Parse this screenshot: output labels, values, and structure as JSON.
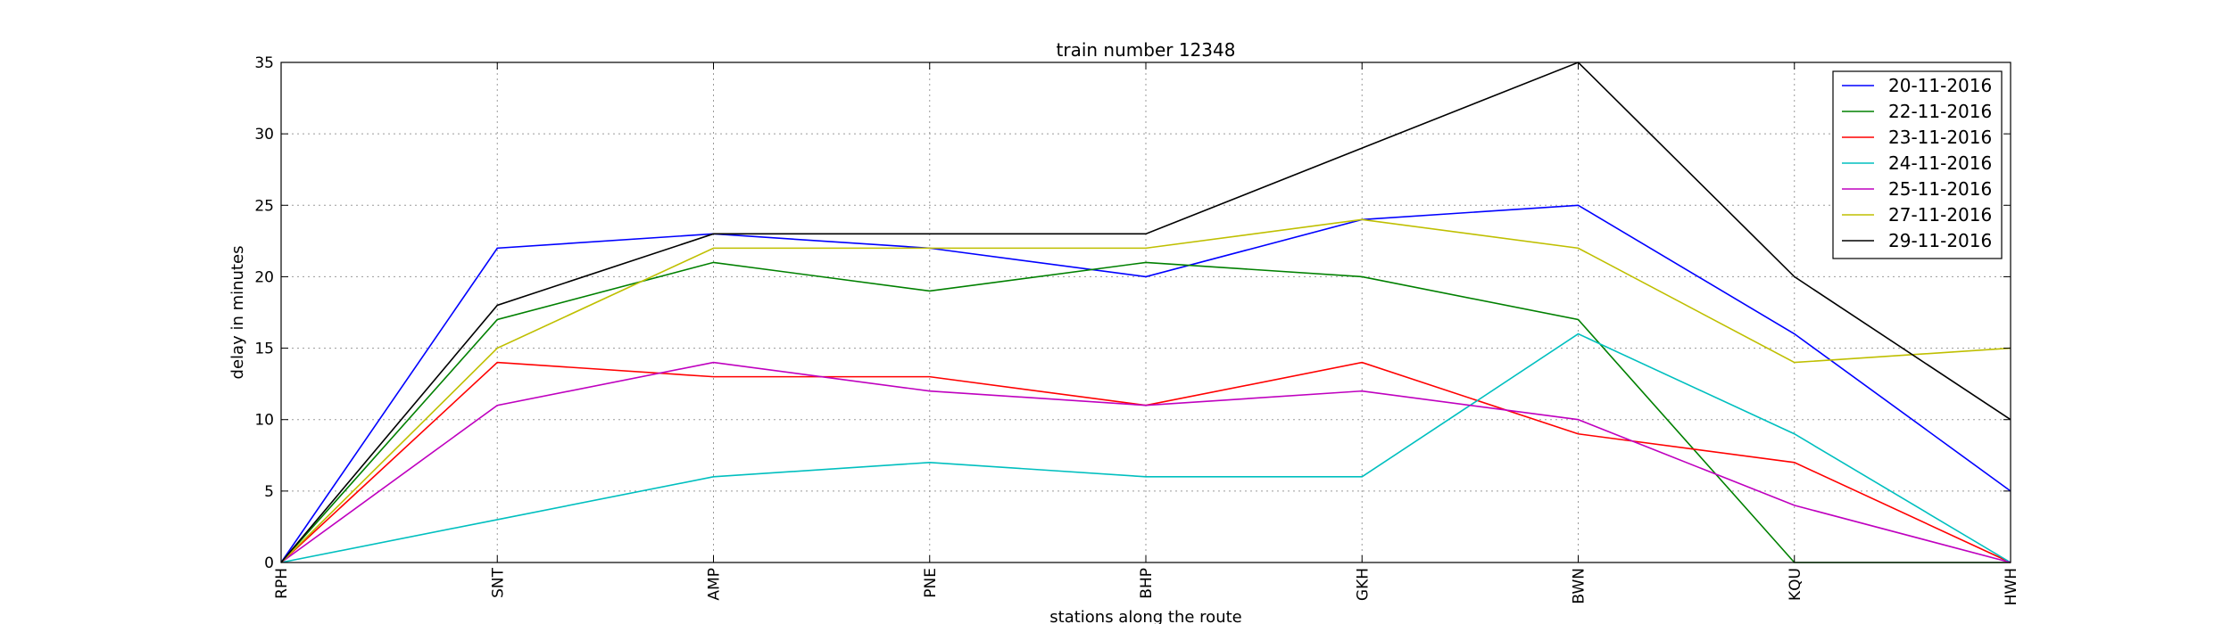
{
  "chart_data": {
    "type": "line",
    "title": "train number 12348",
    "xlabel": "stations along the route",
    "ylabel": "delay in minutes",
    "categories": [
      "RPH",
      "SNT",
      "AMP",
      "PNE",
      "BHP",
      "GKH",
      "BWN",
      "KQU",
      "HWH"
    ],
    "ylim": [
      0,
      35
    ],
    "yticks": [
      0,
      5,
      10,
      15,
      20,
      25,
      30,
      35
    ],
    "grid": true,
    "legend_position": "top-right",
    "series": [
      {
        "name": "20-11-2016",
        "color": "#0000ff",
        "values": [
          0,
          22,
          23,
          22,
          20,
          24,
          25,
          16,
          5
        ]
      },
      {
        "name": "22-11-2016",
        "color": "#008000",
        "values": [
          0,
          17,
          21,
          19,
          21,
          20,
          17,
          0,
          0
        ]
      },
      {
        "name": "23-11-2016",
        "color": "#ff0000",
        "values": [
          0,
          14,
          13,
          13,
          11,
          14,
          9,
          7,
          0
        ]
      },
      {
        "name": "24-11-2016",
        "color": "#00bfbf",
        "values": [
          0,
          3,
          6,
          7,
          6,
          6,
          16,
          9,
          0
        ]
      },
      {
        "name": "25-11-2016",
        "color": "#bf00bf",
        "values": [
          0,
          11,
          14,
          12,
          11,
          12,
          10,
          4,
          0
        ]
      },
      {
        "name": "27-11-2016",
        "color": "#bfbf00",
        "values": [
          0,
          15,
          22,
          22,
          22,
          24,
          22,
          14,
          15
        ]
      },
      {
        "name": "29-11-2016",
        "color": "#000000",
        "values": [
          0,
          18,
          23,
          23,
          23,
          29,
          35,
          20,
          10
        ]
      }
    ]
  }
}
